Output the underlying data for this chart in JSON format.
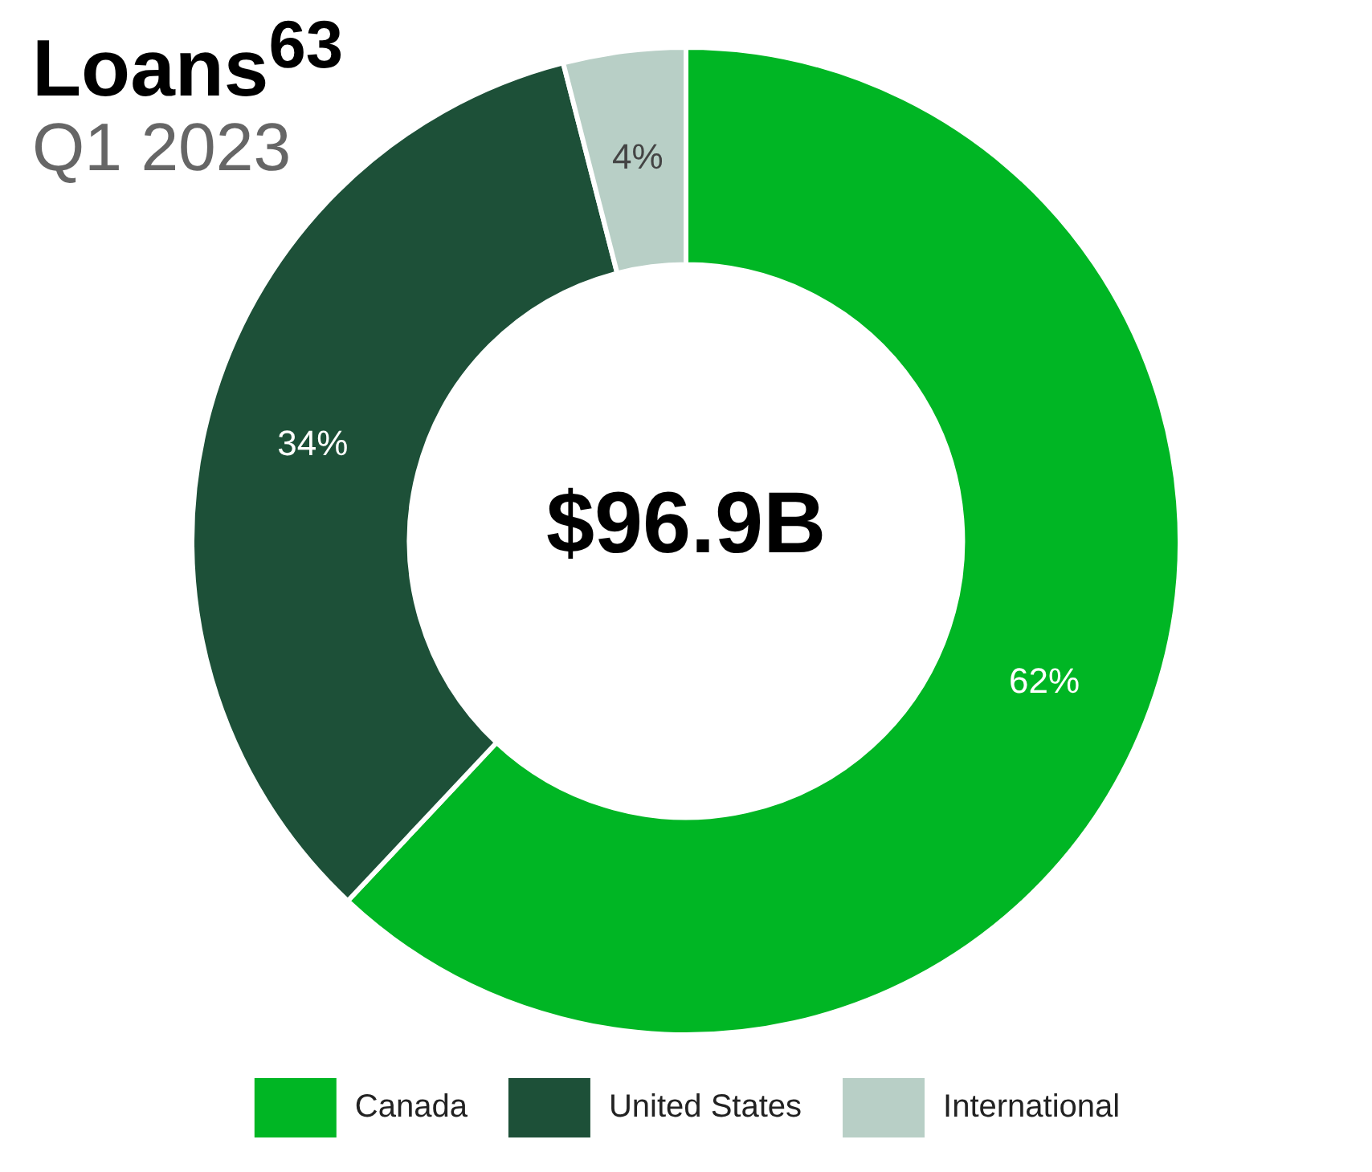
{
  "chart_data": {
    "type": "donut",
    "title": "Loans$^{63}$",
    "subtitle": "Q1 2023",
    "categories": [
      "Canada",
      "United States",
      "International"
    ],
    "values": [
      62,
      34,
      4
    ],
    "colors": [
      "#00b624",
      "#1d5038",
      "#b8cfc6"
    ],
    "value_labels": [
      "62%",
      "34%",
      "4%"
    ],
    "legend": "bottom",
    "annotations": [
      "$96.9B"
    ]
  }
}
